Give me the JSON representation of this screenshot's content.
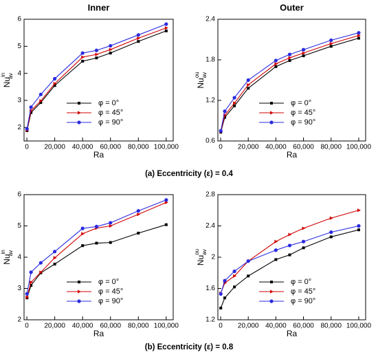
{
  "captions": [
    "(a) Eccentricity (ε) = 0.4",
    "(b) Eccentricity (ε) = 0.8"
  ],
  "chart_data": [
    {
      "type": "line",
      "title": "Inner",
      "xlabel": "Ra",
      "ylabel": {
        "base": "Nu",
        "sup": "in",
        "sub": "av"
      },
      "legend": "lower right",
      "x": [
        100,
        3000,
        10000,
        20000,
        40000,
        50000,
        60000,
        80000,
        100000
      ],
      "xlim": [
        -2000,
        105000
      ],
      "xticks": [
        0,
        {
          "value": 20000,
          "label": "20,000"
        },
        {
          "value": 40000,
          "label": "40,000"
        },
        {
          "value": 60000,
          "label": "60,000"
        },
        {
          "value": 80000,
          "label": "80,000"
        },
        {
          "value": 100000,
          "label": "100,000"
        }
      ],
      "ylim": [
        1.5,
        6
      ],
      "yticks": [
        2,
        3,
        4,
        5,
        6
      ],
      "series": [
        {
          "name": "φ = 0°",
          "color": "#000000",
          "marker": "square",
          "values": [
            1.88,
            2.55,
            2.92,
            3.55,
            4.45,
            4.57,
            4.75,
            5.18,
            5.57
          ]
        },
        {
          "name": "φ = 45°",
          "color": "#d00000",
          "marker": "triangle",
          "values": [
            1.9,
            2.62,
            2.98,
            3.62,
            4.6,
            4.7,
            4.88,
            5.3,
            5.68
          ]
        },
        {
          "name": "φ = 90°",
          "color": "#2a2ae0",
          "marker": "circle",
          "values": [
            1.95,
            2.75,
            3.22,
            3.8,
            4.75,
            4.85,
            5.02,
            5.42,
            5.82
          ]
        }
      ]
    },
    {
      "type": "line",
      "title": "Outer",
      "xlabel": "Ra",
      "ylabel": {
        "base": "Nu",
        "sup": "ou",
        "sub": "av"
      },
      "legend": "lower right",
      "x": [
        100,
        3000,
        10000,
        20000,
        40000,
        50000,
        60000,
        80000,
        100000
      ],
      "xlim": [
        -2000,
        105000
      ],
      "xticks": [
        0,
        {
          "value": 20000,
          "label": "20,000"
        },
        {
          "value": 40000,
          "label": "40,000"
        },
        {
          "value": 60000,
          "label": "60,000"
        },
        {
          "value": 80000,
          "label": "80,000"
        },
        {
          "value": 100000,
          "label": "100,000"
        }
      ],
      "ylim": [
        0.6,
        2.4
      ],
      "yticks": [
        0.6,
        1.2,
        1.8,
        2.4
      ],
      "series": [
        {
          "name": "φ = 0°",
          "color": "#000000",
          "marker": "square",
          "values": [
            0.73,
            0.95,
            1.12,
            1.38,
            1.7,
            1.79,
            1.86,
            2.0,
            2.12
          ]
        },
        {
          "name": "φ = 45°",
          "color": "#d00000",
          "marker": "triangle",
          "values": [
            0.74,
            0.98,
            1.16,
            1.43,
            1.74,
            1.83,
            1.9,
            2.04,
            2.16
          ]
        },
        {
          "name": "φ = 90°",
          "color": "#2a2ae0",
          "marker": "circle",
          "values": [
            0.75,
            1.04,
            1.24,
            1.5,
            1.79,
            1.88,
            1.95,
            2.09,
            2.2
          ]
        }
      ]
    },
    {
      "type": "line",
      "xlabel": "Ra",
      "ylabel": {
        "base": "Nu",
        "sup": "in",
        "sub": "av"
      },
      "legend": "lower right",
      "x": [
        100,
        3000,
        10000,
        20000,
        40000,
        50000,
        60000,
        80000,
        100000
      ],
      "xlim": [
        -2000,
        105000
      ],
      "xticks": [
        0,
        {
          "value": 20000,
          "label": "20,000"
        },
        {
          "value": 40000,
          "label": "40,000"
        },
        {
          "value": 60000,
          "label": "60,000"
        },
        {
          "value": 80000,
          "label": "80,000"
        },
        {
          "value": 100000,
          "label": "100,000"
        }
      ],
      "ylim": [
        2,
        6
      ],
      "yticks": [
        2,
        3,
        4,
        5,
        6
      ],
      "series": [
        {
          "name": "φ = 0°",
          "color": "#000000",
          "marker": "square",
          "values": [
            2.7,
            3.1,
            3.5,
            3.78,
            4.37,
            4.45,
            4.47,
            4.77,
            5.04
          ]
        },
        {
          "name": "φ = 45°",
          "color": "#d00000",
          "marker": "triangle",
          "values": [
            2.72,
            3.2,
            3.52,
            3.98,
            4.75,
            4.93,
            5.0,
            5.37,
            5.75
          ]
        },
        {
          "name": "φ = 90°",
          "color": "#2a2ae0",
          "marker": "circle",
          "values": [
            2.83,
            3.52,
            3.82,
            4.18,
            4.92,
            4.98,
            5.1,
            5.48,
            5.83
          ]
        }
      ]
    },
    {
      "type": "line",
      "xlabel": "Ra",
      "ylabel": {
        "base": "Nu",
        "sup": "ou",
        "sub": "av"
      },
      "legend": "lower right",
      "x": [
        100,
        3000,
        10000,
        20000,
        40000,
        50000,
        60000,
        80000,
        100000
      ],
      "xlim": [
        -2000,
        105000
      ],
      "xticks": [
        0,
        {
          "value": 20000,
          "label": "20,000"
        },
        {
          "value": 40000,
          "label": "40,000"
        },
        {
          "value": 60000,
          "label": "60,000"
        },
        {
          "value": 80000,
          "label": "80,000"
        },
        {
          "value": 100000,
          "label": "100,000"
        }
      ],
      "ylim": [
        1.2,
        2.8
      ],
      "yticks": [
        1.2,
        1.6,
        2,
        2.4,
        2.8
      ],
      "series": [
        {
          "name": "φ = 0°",
          "color": "#000000",
          "marker": "square",
          "values": [
            1.35,
            1.48,
            1.62,
            1.76,
            1.97,
            2.03,
            2.12,
            2.26,
            2.35
          ]
        },
        {
          "name": "φ = 45°",
          "color": "#d00000",
          "marker": "triangle",
          "values": [
            1.54,
            1.67,
            1.76,
            1.95,
            2.2,
            2.29,
            2.37,
            2.5,
            2.6
          ]
        },
        {
          "name": "φ = 90°",
          "color": "#2a2ae0",
          "marker": "circle",
          "values": [
            1.53,
            1.7,
            1.82,
            1.95,
            2.09,
            2.15,
            2.2,
            2.32,
            2.4
          ]
        }
      ]
    }
  ]
}
